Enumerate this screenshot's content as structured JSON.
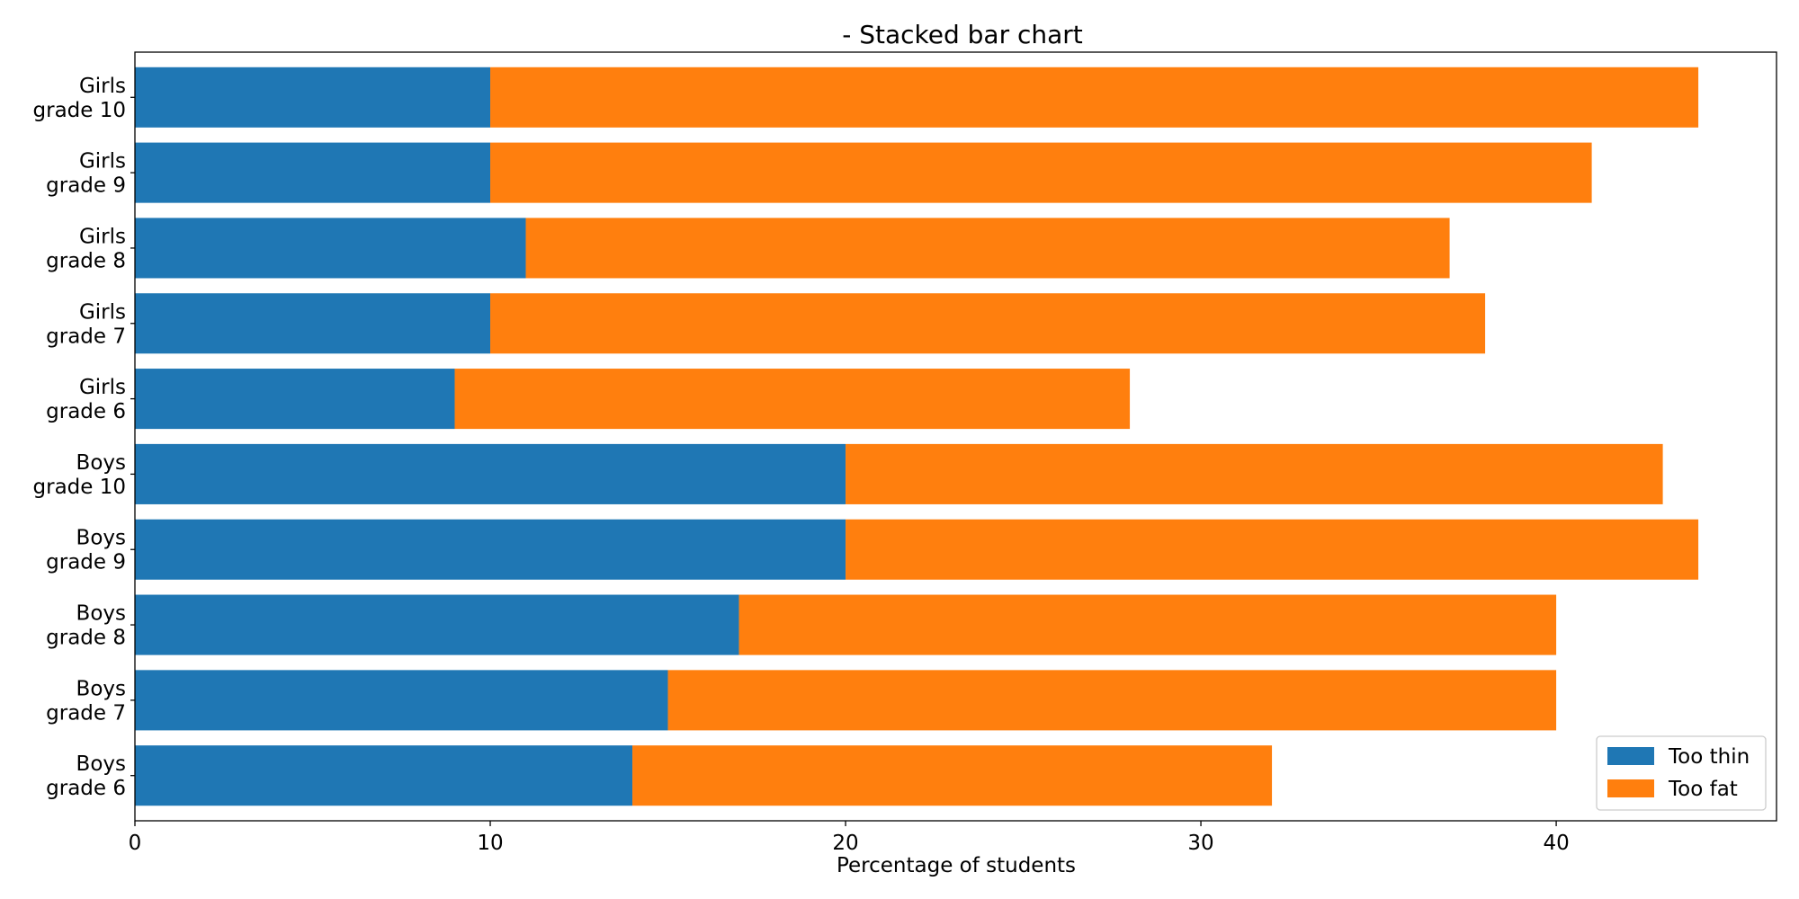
{
  "chart_data": {
    "type": "bar",
    "orientation": "horizontal",
    "stacked": true,
    "title": "- Stacked bar chart",
    "xlabel": "Percentage of students",
    "ylabel": "",
    "categories": [
      [
        "Boys",
        "grade 6"
      ],
      [
        "Boys",
        "grade 7"
      ],
      [
        "Boys",
        "grade 8"
      ],
      [
        "Boys",
        "grade 9"
      ],
      [
        "Boys",
        "grade 10"
      ],
      [
        "Girls",
        "grade 6"
      ],
      [
        "Girls",
        "grade 7"
      ],
      [
        "Girls",
        "grade 8"
      ],
      [
        "Girls",
        "grade 9"
      ],
      [
        "Girls",
        "grade 10"
      ]
    ],
    "series": [
      {
        "name": "Too thin",
        "color": "#1f77b4",
        "values": [
          14,
          15,
          17,
          20,
          20,
          9,
          10,
          11,
          10,
          10
        ]
      },
      {
        "name": "Too fat",
        "color": "#ff7f0e",
        "values": [
          18,
          25,
          23,
          24,
          23,
          19,
          28,
          26,
          31,
          34
        ]
      }
    ],
    "xlim": [
      0,
      46.2
    ],
    "xticks": [
      0,
      10,
      20,
      30,
      40
    ],
    "grid": false,
    "legend_position": "bottom-right"
  }
}
